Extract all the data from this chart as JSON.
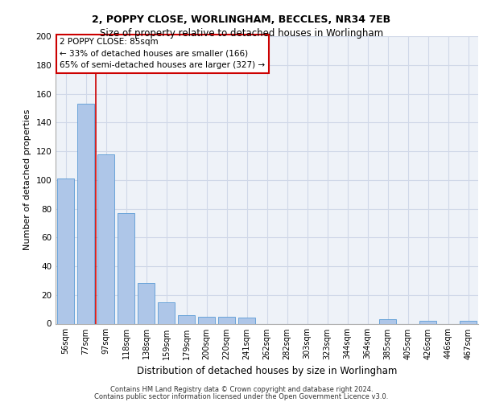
{
  "title1": "2, POPPY CLOSE, WORLINGHAM, BECCLES, NR34 7EB",
  "title2": "Size of property relative to detached houses in Worlingham",
  "xlabel": "Distribution of detached houses by size in Worlingham",
  "ylabel": "Number of detached properties",
  "bar_labels": [
    "56sqm",
    "77sqm",
    "97sqm",
    "118sqm",
    "138sqm",
    "159sqm",
    "179sqm",
    "200sqm",
    "220sqm",
    "241sqm",
    "262sqm",
    "282sqm",
    "303sqm",
    "323sqm",
    "344sqm",
    "364sqm",
    "385sqm",
    "405sqm",
    "426sqm",
    "446sqm",
    "467sqm"
  ],
  "bar_values": [
    101,
    153,
    118,
    77,
    28,
    15,
    6,
    5,
    5,
    4,
    0,
    0,
    0,
    0,
    0,
    0,
    3,
    0,
    2,
    0,
    2
  ],
  "bar_color": "#aec6e8",
  "bar_edge_color": "#5b9bd5",
  "grid_color": "#d0d8e8",
  "background_color": "#eef2f8",
  "red_line_x": 1.48,
  "annotation_text": "2 POPPY CLOSE: 85sqm\n← 33% of detached houses are smaller (166)\n65% of semi-detached houses are larger (327) →",
  "annotation_box_color": "#ffffff",
  "annotation_box_edge_color": "#cc0000",
  "ylim": [
    0,
    200
  ],
  "yticks": [
    0,
    20,
    40,
    60,
    80,
    100,
    120,
    140,
    160,
    180,
    200
  ],
  "footer1": "Contains HM Land Registry data © Crown copyright and database right 2024.",
  "footer2": "Contains public sector information licensed under the Open Government Licence v3.0."
}
